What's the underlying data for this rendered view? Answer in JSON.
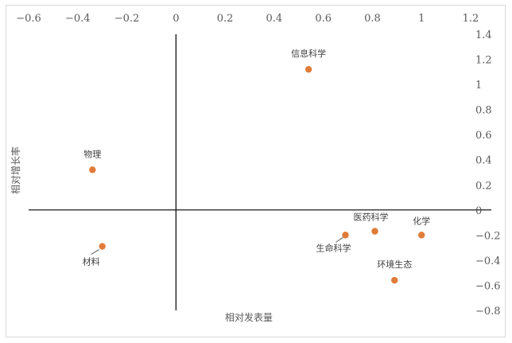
{
  "chart_data": {
    "type": "scatter",
    "title": "",
    "xlabel": "相对发表量",
    "ylabel": "相对增长率",
    "xlim": [
      -0.6,
      1.2
    ],
    "ylim": [
      -0.8,
      1.4
    ],
    "x_ticks": [
      "−0.6",
      "−0.4",
      "−0.2",
      "0",
      "0.2",
      "0.4",
      "0.6",
      "0.8",
      "1",
      "1.2"
    ],
    "y_ticks": [
      "1.4",
      "1.2",
      "1",
      "0.8",
      "0.6",
      "0.4",
      "0.2",
      "0",
      "−0.2",
      "−0.4",
      "−0.6",
      "−0.8"
    ],
    "grid": false,
    "legend": "none",
    "marker_color": "#e07b39",
    "points": [
      {
        "label": "信息科学",
        "x": 0.54,
        "y": 1.12
      },
      {
        "label": "物理",
        "x": -0.34,
        "y": 0.32
      },
      {
        "label": "材料",
        "x": -0.3,
        "y": -0.29
      },
      {
        "label": "医药科学",
        "x": 0.81,
        "y": -0.17
      },
      {
        "label": "化学",
        "x": 1.0,
        "y": -0.2
      },
      {
        "label": "生命科学",
        "x": 0.69,
        "y": -0.2
      },
      {
        "label": "环境生态",
        "x": 0.89,
        "y": -0.56
      }
    ]
  }
}
